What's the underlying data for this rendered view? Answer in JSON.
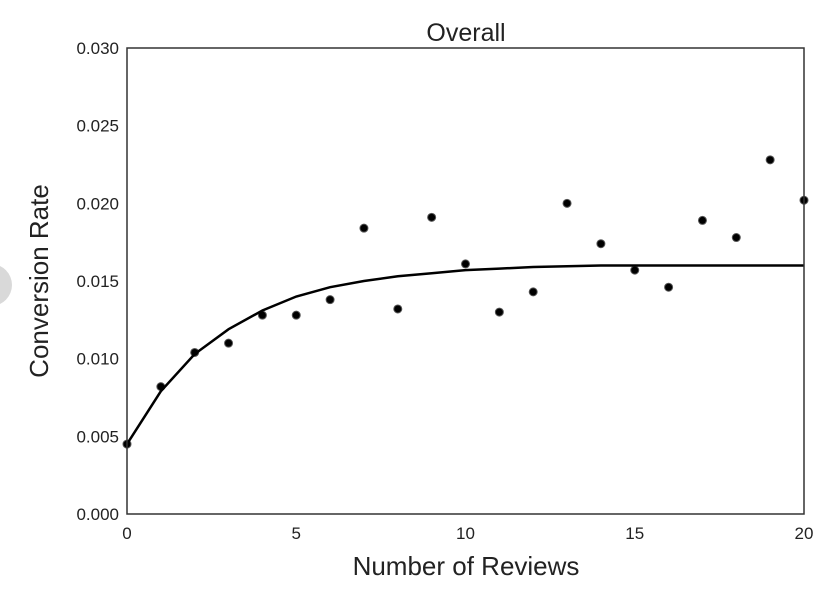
{
  "chart_data": {
    "type": "scatter",
    "title": "Overall",
    "xlabel": "Number of Reviews",
    "ylabel": "Conversion Rate",
    "xlim": [
      0,
      20
    ],
    "ylim": [
      0,
      0.03
    ],
    "xticks": [
      0,
      5,
      10,
      15,
      20
    ],
    "xtick_labels": [
      "0",
      "5",
      "10",
      "15",
      "20"
    ],
    "yticks": [
      0,
      0.005,
      0.01,
      0.015,
      0.02,
      0.025,
      0.03
    ],
    "ytick_labels": [
      "0.000",
      "0.005",
      "0.010",
      "0.015",
      "0.020",
      "0.025",
      "0.030"
    ],
    "grid": false,
    "series": [
      {
        "kind": "points",
        "color": "#000000",
        "x": [
          0,
          1,
          2,
          3,
          4,
          5,
          6,
          7,
          8,
          9,
          10,
          11,
          12,
          13,
          14,
          15,
          16,
          17,
          18,
          19,
          20
        ],
        "y": [
          0.0045,
          0.0082,
          0.0104,
          0.011,
          0.0128,
          0.0128,
          0.0138,
          0.0184,
          0.0132,
          0.0191,
          0.0161,
          0.013,
          0.0143,
          0.02,
          0.0174,
          0.0157,
          0.0146,
          0.0189,
          0.0178,
          0.0228,
          0.0202
        ]
      },
      {
        "kind": "line",
        "color": "#000000",
        "x": [
          0,
          1,
          2,
          3,
          4,
          5,
          6,
          7,
          8,
          9,
          10,
          11,
          12,
          13,
          14,
          15,
          16,
          17,
          18,
          19,
          20
        ],
        "y": [
          0.0045,
          0.0079,
          0.0103,
          0.0119,
          0.0131,
          0.014,
          0.0146,
          0.015,
          0.0153,
          0.0155,
          0.0157,
          0.0158,
          0.0159,
          0.01595,
          0.016,
          0.016,
          0.016,
          0.016,
          0.016,
          0.016,
          0.016
        ]
      }
    ]
  }
}
